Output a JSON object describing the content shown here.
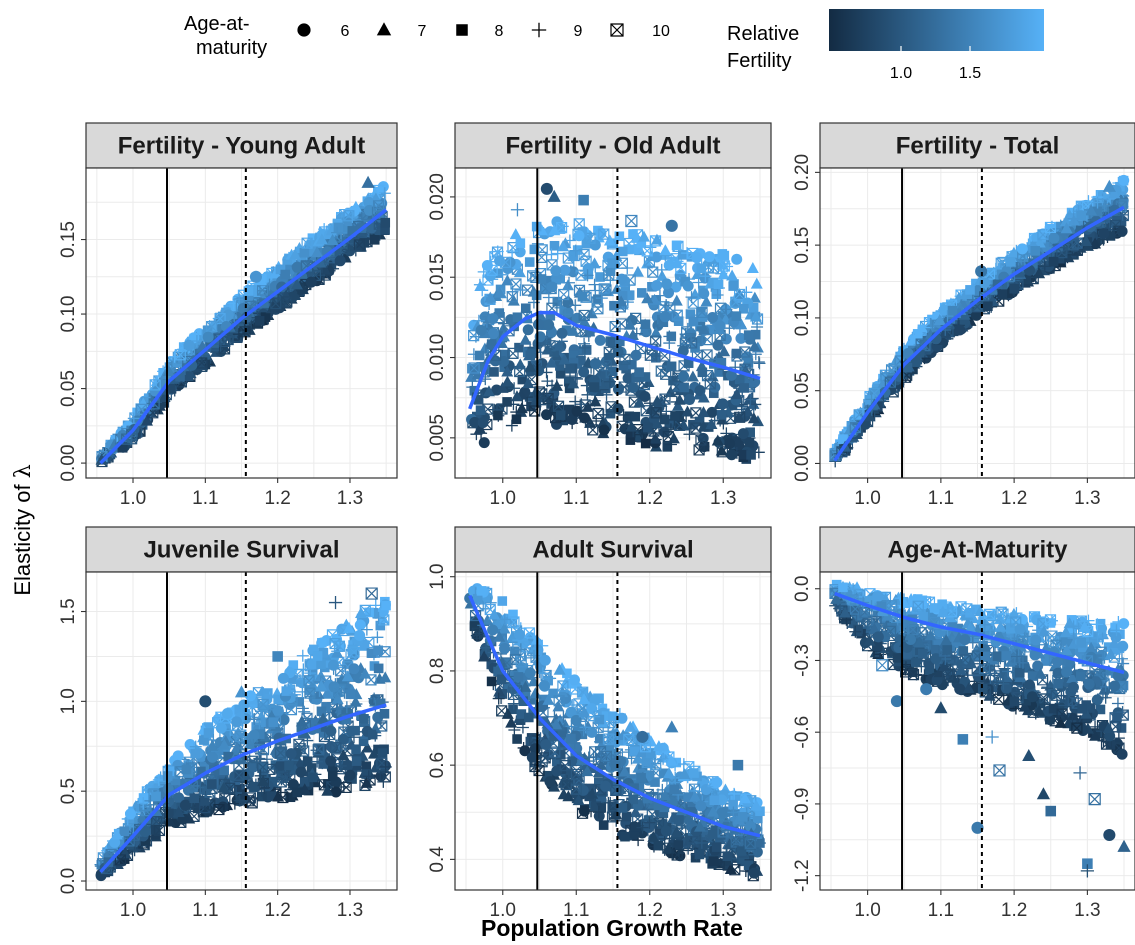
{
  "legend": {
    "shape_title_line1": "Age-at-",
    "shape_title_line2": "maturity",
    "shape_items": [
      {
        "label": "6",
        "shape": "circle"
      },
      {
        "label": "7",
        "shape": "triangle"
      },
      {
        "label": "8",
        "shape": "square"
      },
      {
        "label": "9",
        "shape": "plus"
      },
      {
        "label": "10",
        "shape": "boxed-x"
      }
    ],
    "color_title_line1": "Relative",
    "color_title_line2": "Fertility",
    "color_ticks": [
      "1.0",
      "1.5"
    ],
    "color_low": "#132b43",
    "color_high": "#56b1f7"
  },
  "axes": {
    "ylabel_prefix": "Elasticity of ",
    "ylabel_symbol": "λ",
    "xlabel": "Population Growth Rate"
  },
  "colors": {
    "smooth_line": "#3366ff",
    "strip_fill": "#d9d9d9",
    "grid": "#ebebeb",
    "reference_line": "#000000"
  },
  "chart_data": [
    {
      "type": "scatter",
      "title": "Fertility - Young Adult",
      "xlim": [
        0.935,
        1.365
      ],
      "ylim": [
        -0.01,
        0.198
      ],
      "xticks": [
        1.0,
        1.1,
        1.2,
        1.3
      ],
      "xtick_labels": [
        "1.0",
        "1.1",
        "1.2",
        "1.3"
      ],
      "yticks": [
        0.0,
        0.05,
        0.1,
        0.15
      ],
      "ytick_labels": [
        "0.00",
        "0.05",
        "0.10",
        "0.15"
      ],
      "vlines": [
        {
          "x": 1.047,
          "style": "solid"
        },
        {
          "x": 1.156,
          "style": "dashed"
        }
      ],
      "smooth": {
        "x": [
          0.955,
          1.0,
          1.05,
          1.1,
          1.15,
          1.2,
          1.25,
          1.3,
          1.35
        ],
        "y": [
          0.0,
          0.022,
          0.055,
          0.076,
          0.097,
          0.115,
          0.133,
          0.151,
          0.17
        ]
      },
      "cloud": {
        "x": [
          0.955,
          1.0,
          1.05,
          1.1,
          1.15,
          1.2,
          1.25,
          1.3,
          1.35
        ],
        "lo": [
          0.0,
          0.015,
          0.045,
          0.065,
          0.085,
          0.103,
          0.12,
          0.138,
          0.155
        ],
        "hi": [
          0.005,
          0.03,
          0.068,
          0.092,
          0.113,
          0.132,
          0.152,
          0.17,
          0.188
        ]
      },
      "outliers": [
        {
          "x": 1.17,
          "y": 0.125
        },
        {
          "x": 1.325,
          "y": 0.188
        }
      ]
    },
    {
      "type": "scatter",
      "title": "Fertility - Old Adult",
      "xlim": [
        0.935,
        1.365
      ],
      "ylim": [
        0.0025,
        0.0218
      ],
      "xticks": [
        1.0,
        1.1,
        1.2,
        1.3
      ],
      "xtick_labels": [
        "1.0",
        "1.1",
        "1.2",
        "1.3"
      ],
      "yticks": [
        0.005,
        0.01,
        0.015,
        0.02
      ],
      "ytick_labels": [
        "0.005",
        "0.010",
        "0.015",
        "0.020"
      ],
      "vlines": [
        {
          "x": 1.047,
          "style": "solid"
        },
        {
          "x": 1.156,
          "style": "dashed"
        }
      ],
      "smooth": {
        "x": [
          0.955,
          0.98,
          1.0,
          1.03,
          1.05,
          1.07,
          1.1,
          1.15,
          1.2,
          1.25,
          1.3,
          1.35
        ],
        "y": [
          0.0068,
          0.0098,
          0.0113,
          0.0124,
          0.0128,
          0.0128,
          0.012,
          0.0114,
          0.0107,
          0.01,
          0.0094,
          0.0087
        ]
      },
      "cloud": {
        "x": [
          0.955,
          0.97,
          1.0,
          1.05,
          1.1,
          1.15,
          1.2,
          1.25,
          1.3,
          1.35
        ],
        "lo": [
          0.0035,
          0.0045,
          0.0055,
          0.006,
          0.0055,
          0.005,
          0.0045,
          0.004,
          0.0038,
          0.0035
        ],
        "hi": [
          0.011,
          0.015,
          0.0175,
          0.0185,
          0.0185,
          0.018,
          0.0175,
          0.017,
          0.0165,
          0.016
        ]
      },
      "outliers": [
        {
          "x": 1.06,
          "y": 0.0205
        },
        {
          "x": 1.07,
          "y": 0.02
        },
        {
          "x": 1.11,
          "y": 0.0198
        },
        {
          "x": 1.02,
          "y": 0.0192
        },
        {
          "x": 1.175,
          "y": 0.0185
        },
        {
          "x": 1.23,
          "y": 0.0182
        }
      ]
    },
    {
      "type": "scatter",
      "title": "Fertility - Total",
      "xlim": [
        0.935,
        1.365
      ],
      "ylim": [
        -0.01,
        0.203
      ],
      "xticks": [
        1.0,
        1.1,
        1.2,
        1.3
      ],
      "xtick_labels": [
        "1.0",
        "1.1",
        "1.2",
        "1.3"
      ],
      "yticks": [
        0.0,
        0.05,
        0.1,
        0.15,
        0.2
      ],
      "ytick_labels": [
        "0.00",
        "0.05",
        "0.10",
        "0.15",
        "0.20"
      ],
      "vlines": [
        {
          "x": 1.047,
          "style": "solid"
        },
        {
          "x": 1.156,
          "style": "dashed"
        }
      ],
      "smooth": {
        "x": [
          0.955,
          1.0,
          1.05,
          1.1,
          1.15,
          1.2,
          1.25,
          1.3,
          1.35
        ],
        "y": [
          0.002,
          0.035,
          0.068,
          0.092,
          0.112,
          0.13,
          0.146,
          0.162,
          0.176
        ]
      },
      "cloud": {
        "x": [
          0.955,
          1.0,
          1.05,
          1.1,
          1.15,
          1.2,
          1.25,
          1.3,
          1.35
        ],
        "lo": [
          0.0,
          0.028,
          0.058,
          0.082,
          0.1,
          0.118,
          0.134,
          0.148,
          0.16
        ],
        "hi": [
          0.008,
          0.045,
          0.08,
          0.105,
          0.125,
          0.145,
          0.163,
          0.18,
          0.195
        ]
      },
      "outliers": [
        {
          "x": 1.155,
          "y": 0.132
        },
        {
          "x": 1.33,
          "y": 0.19
        }
      ]
    },
    {
      "type": "scatter",
      "title": "Juvenile Survival",
      "xlim": [
        0.935,
        1.365
      ],
      "ylim": [
        -0.05,
        1.72
      ],
      "xticks": [
        1.0,
        1.1,
        1.2,
        1.3
      ],
      "xtick_labels": [
        "1.0",
        "1.1",
        "1.2",
        "1.3"
      ],
      "yticks": [
        0.0,
        0.5,
        1.0,
        1.5
      ],
      "ytick_labels": [
        "0.0",
        "0.5",
        "1.0",
        "1.5"
      ],
      "vlines": [
        {
          "x": 1.047,
          "style": "solid"
        },
        {
          "x": 1.156,
          "style": "dashed"
        }
      ],
      "smooth": {
        "x": [
          0.955,
          1.0,
          1.05,
          1.1,
          1.15,
          1.2,
          1.25,
          1.3,
          1.35
        ],
        "y": [
          0.05,
          0.25,
          0.48,
          0.6,
          0.7,
          0.78,
          0.85,
          0.92,
          0.98
        ]
      },
      "cloud": {
        "x": [
          0.955,
          1.0,
          1.05,
          1.1,
          1.15,
          1.2,
          1.25,
          1.3,
          1.35
        ],
        "lo": [
          0.02,
          0.15,
          0.3,
          0.38,
          0.42,
          0.45,
          0.48,
          0.5,
          0.52
        ],
        "hi": [
          0.12,
          0.4,
          0.65,
          0.85,
          1.0,
          1.15,
          1.3,
          1.45,
          1.6
        ]
      },
      "outliers": [
        {
          "x": 1.1,
          "y": 1.0
        },
        {
          "x": 1.15,
          "y": 1.05
        },
        {
          "x": 1.2,
          "y": 1.25
        },
        {
          "x": 1.28,
          "y": 1.55
        },
        {
          "x": 1.33,
          "y": 1.6
        }
      ]
    },
    {
      "type": "scatter",
      "title": "Adult Survival",
      "xlim": [
        0.935,
        1.365
      ],
      "ylim": [
        0.335,
        1.01
      ],
      "xticks": [
        1.0,
        1.1,
        1.2,
        1.3
      ],
      "xtick_labels": [
        "1.0",
        "1.1",
        "1.2",
        "1.3"
      ],
      "yticks": [
        0.4,
        0.6,
        0.8,
        1.0
      ],
      "ytick_labels": [
        "0.4",
        "0.6",
        "0.8",
        "1.0"
      ],
      "vlines": [
        {
          "x": 1.047,
          "style": "solid"
        },
        {
          "x": 1.156,
          "style": "dashed"
        }
      ],
      "smooth": {
        "x": [
          0.955,
          0.98,
          1.0,
          1.05,
          1.1,
          1.15,
          1.2,
          1.25,
          1.3,
          1.35
        ],
        "y": [
          0.96,
          0.87,
          0.8,
          0.7,
          0.62,
          0.57,
          0.53,
          0.5,
          0.47,
          0.45
        ]
      },
      "cloud": {
        "x": [
          0.955,
          1.0,
          1.05,
          1.1,
          1.15,
          1.2,
          1.25,
          1.3,
          1.35
        ],
        "lo": [
          0.92,
          0.7,
          0.58,
          0.5,
          0.46,
          0.42,
          0.4,
          0.38,
          0.36
        ],
        "hi": [
          0.99,
          0.95,
          0.86,
          0.78,
          0.72,
          0.66,
          0.6,
          0.56,
          0.52
        ]
      },
      "outliers": [
        {
          "x": 1.19,
          "y": 0.66
        },
        {
          "x": 1.23,
          "y": 0.68
        },
        {
          "x": 1.32,
          "y": 0.6
        }
      ]
    },
    {
      "type": "scatter",
      "title": "Age-At-Maturity",
      "xlim": [
        0.935,
        1.365
      ],
      "ylim": [
        -1.26,
        0.07
      ],
      "xticks": [
        1.0,
        1.1,
        1.2,
        1.3
      ],
      "xtick_labels": [
        "1.0",
        "1.1",
        "1.2",
        "1.3"
      ],
      "yticks": [
        0.0,
        -0.3,
        -0.6,
        -0.9,
        -1.2
      ],
      "ytick_labels": [
        "0.0",
        "-0.3",
        "-0.6",
        "-0.9",
        "-1.2"
      ],
      "vlines": [
        {
          "x": 1.047,
          "style": "solid"
        },
        {
          "x": 1.156,
          "style": "dashed"
        }
      ],
      "smooth": {
        "x": [
          0.955,
          1.0,
          1.05,
          1.1,
          1.15,
          1.2,
          1.25,
          1.3,
          1.35
        ],
        "y": [
          -0.02,
          -0.07,
          -0.12,
          -0.16,
          -0.19,
          -0.23,
          -0.27,
          -0.31,
          -0.35
        ]
      },
      "cloud": {
        "x": [
          0.955,
          1.0,
          1.05,
          1.1,
          1.15,
          1.2,
          1.25,
          1.3,
          1.35
        ],
        "lo": [
          -0.08,
          -0.25,
          -0.35,
          -0.4,
          -0.45,
          -0.5,
          -0.55,
          -0.6,
          -0.7
        ],
        "hi": [
          0.02,
          0.0,
          -0.03,
          -0.06,
          -0.08,
          -0.1,
          -0.12,
          -0.13,
          -0.14
        ]
      },
      "outliers": [
        {
          "x": 1.04,
          "y": -0.47
        },
        {
          "x": 1.1,
          "y": -0.5
        },
        {
          "x": 1.13,
          "y": -0.63
        },
        {
          "x": 1.17,
          "y": -0.62
        },
        {
          "x": 1.18,
          "y": -0.76
        },
        {
          "x": 1.15,
          "y": -1.0
        },
        {
          "x": 1.24,
          "y": -0.86
        },
        {
          "x": 1.25,
          "y": -0.93
        },
        {
          "x": 1.29,
          "y": -0.77
        },
        {
          "x": 1.31,
          "y": -0.88
        },
        {
          "x": 1.33,
          "y": -1.03
        },
        {
          "x": 1.35,
          "y": -1.08
        },
        {
          "x": 1.3,
          "y": -1.15
        },
        {
          "x": 1.3,
          "y": -1.18
        },
        {
          "x": 1.02,
          "y": -0.32
        },
        {
          "x": 1.08,
          "y": -0.42
        },
        {
          "x": 1.22,
          "y": -0.7
        }
      ]
    }
  ]
}
